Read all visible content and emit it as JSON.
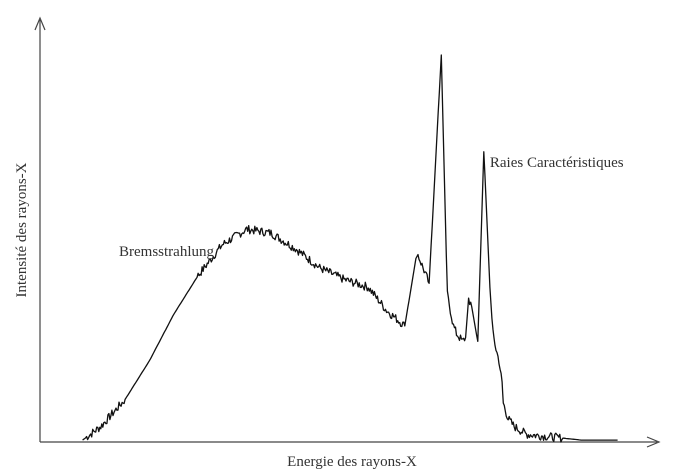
{
  "chart_data": {
    "type": "line",
    "title": "",
    "xlabel": "Energie des rayons-X",
    "ylabel": "Intensité des rayons-X",
    "xlim": [
      0,
      100
    ],
    "ylim": [
      0,
      100
    ],
    "grid": false,
    "legend": "none",
    "annotations": [
      {
        "text": "Bremsstrahlung",
        "x": 13,
        "y": 48
      },
      {
        "text": "Raies Caractéristiques",
        "x": 74,
        "y": 71
      }
    ],
    "series": [
      {
        "x": [
          7,
          10,
          14,
          18,
          22,
          26,
          30,
          34,
          38,
          42,
          46,
          50,
          54,
          57,
          60,
          62,
          64,
          66,
          67,
          68,
          68.5,
          69,
          69.5,
          70,
          70.5,
          71,
          72,
          73,
          74,
          74.5,
          75,
          75.5,
          76,
          76.2,
          77,
          78,
          80,
          83,
          86,
          89,
          92,
          95
        ],
        "y": [
          0.5,
          4,
          11,
          21,
          33,
          43,
          51,
          55,
          54,
          50,
          45,
          42,
          40,
          34,
          30,
          49,
          41,
          100,
          38,
          30,
          28,
          27,
          26,
          27,
          37,
          35,
          26,
          75,
          40,
          28,
          24,
          21,
          15,
          10,
          6,
          4,
          2,
          1.5,
          1,
          0.5,
          0.5,
          0.5
        ]
      }
    ]
  }
}
